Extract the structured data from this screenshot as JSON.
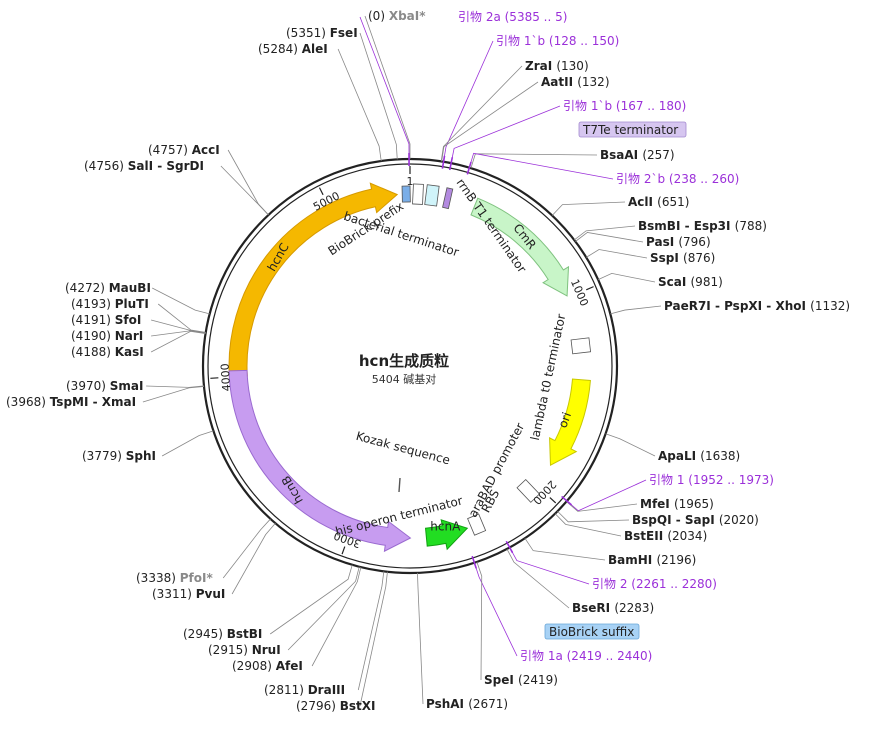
{
  "center": {
    "title": "hcn生成质粒",
    "size": "5404 碱基对"
  },
  "boxes": {
    "t7te": "T7Te terminator",
    "suffix": "BioBrick suffix"
  },
  "ticks": [
    "1",
    "1000",
    "2000",
    "3000",
    "4000",
    "5000"
  ],
  "features": [
    {
      "id": "hcnC",
      "label": "hcnC",
      "color": "#f5b800",
      "stroke": "#d69a00"
    },
    {
      "id": "hcnB",
      "label": "hcnB",
      "color": "#c79cf0",
      "stroke": "#9a6ad0"
    },
    {
      "id": "hcnA",
      "label": "hcnA",
      "color": "#22dd22",
      "stroke": "#11a011"
    },
    {
      "id": "CmR",
      "label": "CmR",
      "color": "#c8f5c8",
      "stroke": "#7fc27f"
    },
    {
      "id": "ori",
      "label": "ori",
      "color": "#ffff00",
      "stroke": "#c8c800"
    }
  ],
  "feature_texts": {
    "biobrick_prefix": "BioBrick prefix",
    "bacterial_terminator": "bacterial terminator",
    "rrnb": "rrnB T1 terminator",
    "lambda": "lambda t0 terminator",
    "arabad": "araBAD promoter",
    "rbs": "RBS",
    "kozak": "Kozak sequence",
    "his": "his operon terminator"
  },
  "sites": [
    {
      "pos": "(0)",
      "name": "XbaI*",
      "style": "gray"
    },
    {
      "pos": "(5351)",
      "name": "FseI"
    },
    {
      "pos": "(5284)",
      "name": "AleI"
    },
    {
      "name": "引物 2a",
      "pos": "(5385 .. 5)",
      "style": "primer"
    },
    {
      "name": "引物 1`b",
      "pos": "(128 .. 150)",
      "style": "primer"
    },
    {
      "name": "ZraI",
      "pos": "(130)"
    },
    {
      "name": "AatII",
      "pos": "(132)"
    },
    {
      "name": "引物 1`b",
      "pos": "(167 .. 180)",
      "style": "primer"
    },
    {
      "name": "BsaAI",
      "pos": "(257)"
    },
    {
      "name": "引物 2`b",
      "pos": "(238 .. 260)",
      "style": "primer"
    },
    {
      "name": "AclI",
      "pos": "(651)"
    },
    {
      "name": "BsmBI - Esp3I",
      "pos": "(788)"
    },
    {
      "name": "PasI",
      "pos": "(796)"
    },
    {
      "name": "SspI",
      "pos": "(876)"
    },
    {
      "name": "ScaI",
      "pos": "(981)"
    },
    {
      "name": "PaeR7I - PspXI - XhoI",
      "pos": "(1132)"
    },
    {
      "name": "ApaLI",
      "pos": "(1638)"
    },
    {
      "name": "引物 1",
      "pos": "(1952 .. 1973)",
      "style": "primer"
    },
    {
      "name": "MfeI",
      "pos": "(1965)"
    },
    {
      "name": "BspQI - SapI",
      "pos": "(2020)"
    },
    {
      "name": "BstEII",
      "pos": "(2034)"
    },
    {
      "name": "BamHI",
      "pos": "(2196)"
    },
    {
      "name": "引物 2",
      "pos": "(2261 .. 2280)",
      "style": "primer"
    },
    {
      "name": "BseRI",
      "pos": "(2283)"
    },
    {
      "name": "引物 1a",
      "pos": "(2419 .. 2440)",
      "style": "primer"
    },
    {
      "name": "SpeI",
      "pos": "(2419)"
    },
    {
      "name": "PshAI",
      "pos": "(2671)"
    },
    {
      "pos": "(2796)",
      "name": "BstXI"
    },
    {
      "pos": "(2811)",
      "name": "DraIII"
    },
    {
      "pos": "(2908)",
      "name": "AfeI"
    },
    {
      "pos": "(2915)",
      "name": "NruI"
    },
    {
      "pos": "(2945)",
      "name": "BstBI"
    },
    {
      "pos": "(3311)",
      "name": "PvuI"
    },
    {
      "pos": "(3338)",
      "name": "PfoI*",
      "style": "gray"
    },
    {
      "pos": "(3779)",
      "name": "SphI"
    },
    {
      "pos": "(3968)",
      "name": "TspMI - XmaI"
    },
    {
      "pos": "(3970)",
      "name": "SmaI"
    },
    {
      "pos": "(4188)",
      "name": "KasI"
    },
    {
      "pos": "(4190)",
      "name": "NarI"
    },
    {
      "pos": "(4191)",
      "name": "SfoI"
    },
    {
      "pos": "(4193)",
      "name": "PluTI"
    },
    {
      "pos": "(4272)",
      "name": "MauBI"
    },
    {
      "pos": "(4756)",
      "name": "SalI - SgrDI"
    },
    {
      "pos": "(4757)",
      "name": "AccI"
    }
  ]
}
